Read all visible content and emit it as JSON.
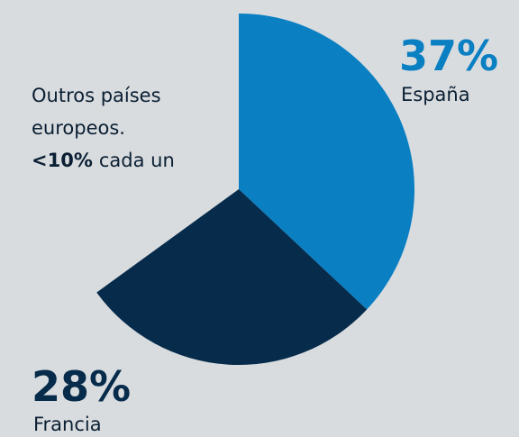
{
  "chart_data": {
    "type": "pie",
    "categories": [
      "España",
      "Francia"
    ],
    "values": [
      37,
      28
    ],
    "value_labels": [
      "37%",
      "28%"
    ],
    "colors": [
      "#0a7fc2",
      "#062b4b"
    ],
    "label_colors": [
      "#0a7fc2",
      "#062b4b"
    ],
    "annotation": {
      "line1": "Outros países",
      "line2": "europeos.",
      "bold": "<10%",
      "rest": "cada un"
    }
  }
}
